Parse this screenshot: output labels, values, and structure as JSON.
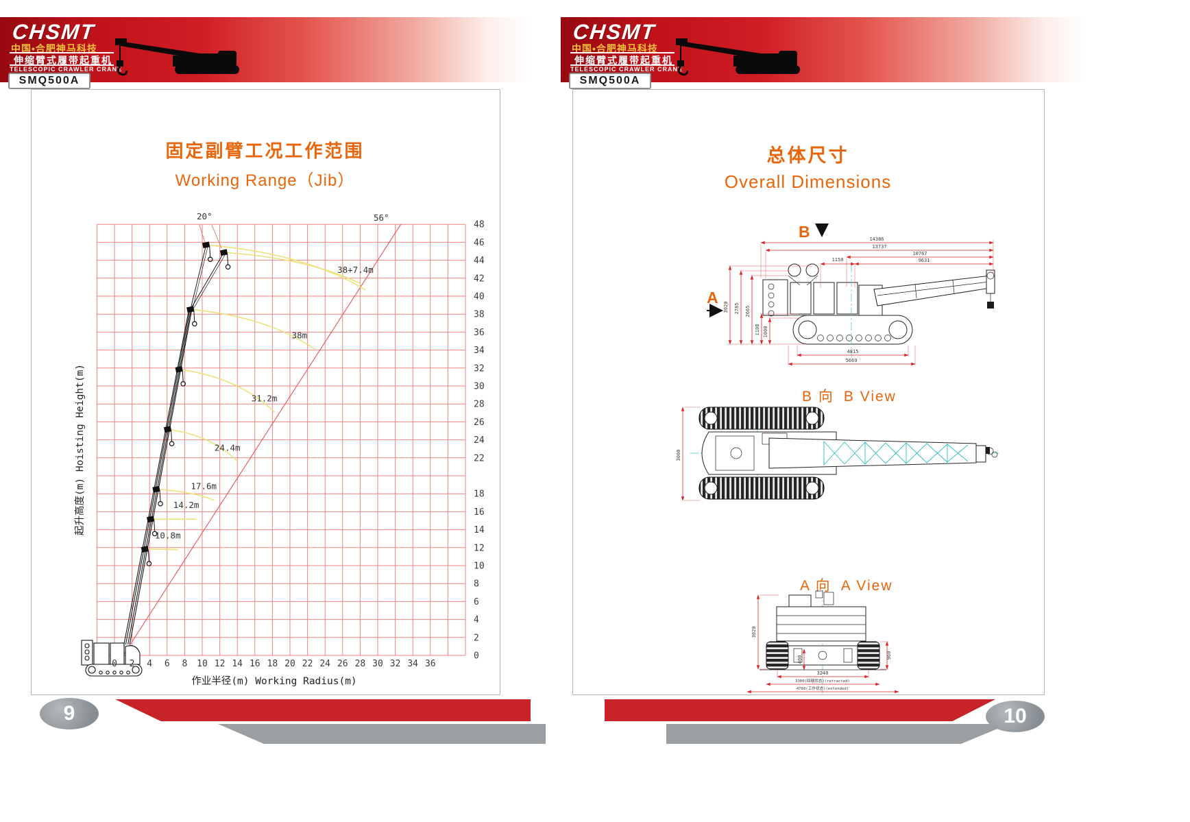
{
  "colors": {
    "header_red": "#c0121a",
    "accent_orange": "#e8650a",
    "grid_pink": "#f4827f",
    "radius_line_red": "#e4555b",
    "arc_yellow": "#ece27d",
    "dim_red": "#d9252b",
    "centerline_cyan": "#3fc6c6",
    "footer_red": "#c9232a",
    "footer_gray": "#9b9fa2"
  },
  "header": {
    "logo_text": "CHSMT",
    "company_cn": "中国•合肥神马科技",
    "product_cn": "伸缩臂式履带起重机",
    "product_en": "TELESCOPIC CRAWLER CRANE",
    "model": "SMQ500A"
  },
  "left_page": {
    "page_number": "9",
    "title_cn": "固定副臂工况工作范围",
    "title_en": "Working  Range（Jib）"
  },
  "right_page": {
    "page_number": "10",
    "title_cn": "总体尺寸",
    "title_en": "Overall  Dimensions",
    "side_view": {
      "marker_b": "B",
      "marker_a": "A",
      "dims_top": [
        "14386",
        "13737",
        "10767",
        "9631",
        "1150"
      ],
      "dims_left": [
        "3020",
        "2785",
        "2665",
        "1108",
        "1000"
      ],
      "dims_bottom": [
        "4815",
        "5669"
      ]
    },
    "b_view": {
      "label_cn": "B 向",
      "label_en": "B View",
      "dim_left": "3000"
    },
    "a_view": {
      "label_cn": "A 向",
      "label_en": "A View",
      "dim_left": "3020",
      "dim_right": "960",
      "dim_inner": "400",
      "dims_bottom": [
        "3240",
        "3300(回缩状态)(retracted)",
        "4760(工作状态)(extended)"
      ]
    }
  },
  "chart_data": {
    "type": "line",
    "title": "固定副臂工况工作范围 Working Range（Jib）",
    "xlabel": "作业半径(m)  Working Radius(m)",
    "ylabel": "起升高度(m) Hoisting Height(m)",
    "xlim": [
      -2,
      40
    ],
    "ylim": [
      0,
      48
    ],
    "grid": true,
    "x_ticks": [
      0,
      2,
      4,
      6,
      8,
      10,
      12,
      14,
      16,
      18,
      20,
      22,
      24,
      26,
      28,
      30,
      32,
      34,
      36
    ],
    "y_ticks": [
      48,
      46,
      44,
      42,
      40,
      38,
      36,
      34,
      32,
      30,
      28,
      26,
      24,
      22,
      18,
      16,
      14,
      12,
      10,
      8,
      6,
      4,
      2,
      0
    ],
    "jib_offset_angle_label": "20°",
    "radius_line_angle_label": "56°",
    "boom_elevation_deg": 79,
    "curves": [
      {
        "label": "10.8m",
        "boom_m": 10.8,
        "label_at": [
          4.6,
          13.0
        ]
      },
      {
        "label": "14.2m",
        "boom_m": 14.2,
        "label_at": [
          6.7,
          16.4
        ]
      },
      {
        "label": "17.6m",
        "boom_m": 17.6,
        "label_at": [
          8.7,
          18.5
        ]
      },
      {
        "label": "24.4m",
        "boom_m": 24.4,
        "label_at": [
          11.4,
          22.8
        ]
      },
      {
        "label": "31.2m",
        "boom_m": 31.2,
        "label_at": [
          15.6,
          28.3
        ]
      },
      {
        "label": "38m",
        "boom_m": 38.0,
        "label_at": [
          20.2,
          35.3
        ]
      },
      {
        "label": "38+7.4m",
        "boom_m": 38.0,
        "jib_m": 7.4,
        "label_at": [
          25.4,
          42.6
        ]
      }
    ]
  }
}
